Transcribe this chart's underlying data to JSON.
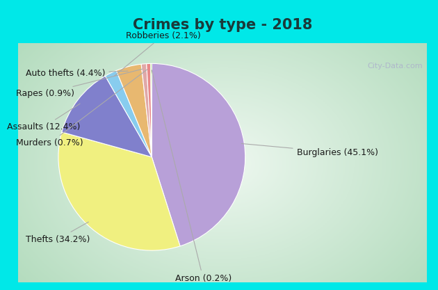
{
  "title": "Crimes by type - 2018",
  "labels": [
    "Burglaries",
    "Thefts",
    "Assaults",
    "Robberies",
    "Auto thefts",
    "Rapes",
    "Murders",
    "Arson"
  ],
  "display_labels": [
    "Burglaries (45.1%)",
    "Thefts (34.2%)",
    "Assaults (12.4%)",
    "Robberies (2.1%)",
    "Auto thefts (4.4%)",
    "Rapes (0.9%)",
    "Murders (0.7%)",
    "Arson (0.2%)"
  ],
  "values": [
    45.1,
    34.2,
    12.4,
    2.1,
    4.4,
    0.9,
    0.7,
    0.2
  ],
  "colors": [
    "#b8a0d8",
    "#f0f080",
    "#8080cc",
    "#88ccee",
    "#e8b870",
    "#e0a8a8",
    "#e88888",
    "#90cc60"
  ],
  "border_color": "#00e8e8",
  "bg_inner_color": "#c8e8d0",
  "bg_center_color": "#eef8f0",
  "title_fontsize": 15,
  "label_fontsize": 9,
  "startangle": 90,
  "watermark": "City-Data.com"
}
